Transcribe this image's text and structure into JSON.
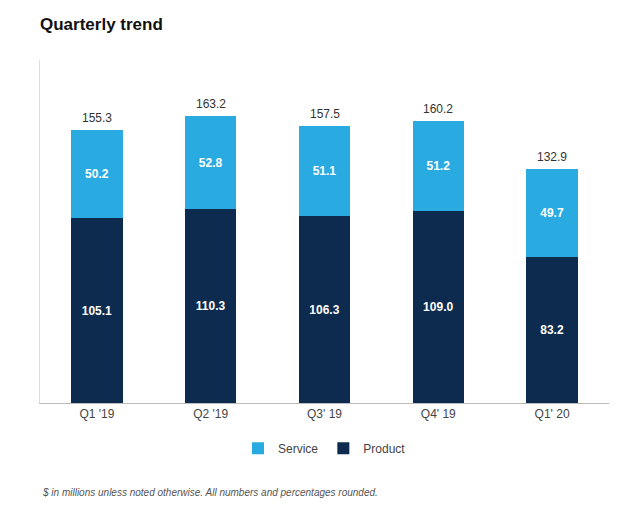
{
  "chart_data": {
    "type": "bar",
    "stacked": true,
    "title": "Quarterly trend",
    "categories": [
      "Q1 '19",
      "Q2 '19",
      "Q3' 19",
      "Q4' 19",
      "Q1' 20"
    ],
    "series": [
      {
        "name": "Product",
        "color": "#0D2B4E",
        "values": [
          105.1,
          110.3,
          106.3,
          109.0,
          83.2
        ],
        "value_labels": [
          "105.1",
          "110.3",
          "106.3",
          "109.0",
          "83.2"
        ]
      },
      {
        "name": "Service",
        "color": "#29ABE2",
        "values": [
          50.2,
          52.8,
          51.1,
          51.2,
          49.7
        ]
      }
    ],
    "totals": [
      155.3,
      163.2,
      157.5,
      160.2,
      132.9
    ],
    "data_labels": true,
    "ylim": [
      0,
      195
    ],
    "yticks": [],
    "tick_labels": "x",
    "grid": false,
    "legend": "bottom",
    "annotations": [
      "$ in millions unless noted otherwise. All numbers and percentages rounded."
    ]
  }
}
